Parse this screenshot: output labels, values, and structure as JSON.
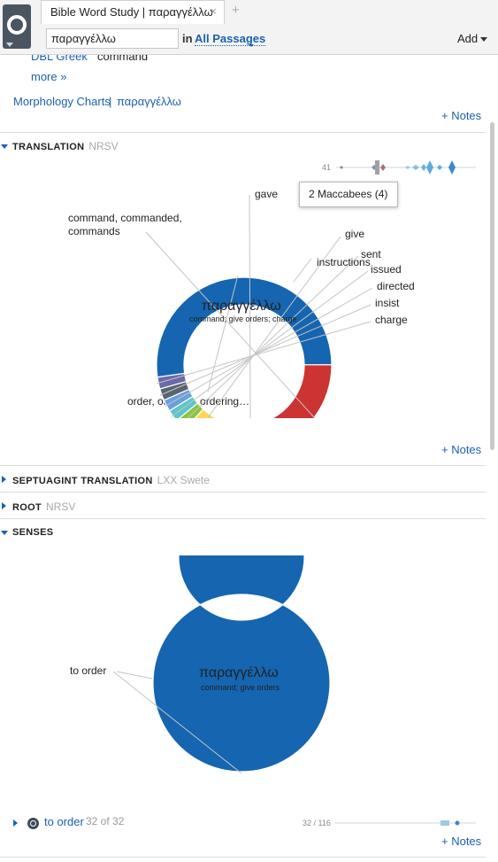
{
  "app": {
    "tab_title": "Bible Word Study | παραγγέλλω",
    "tab_close": "×",
    "tab_add": "+",
    "search_value": "παραγγέλλω",
    "in_label": "in",
    "passages_label": "All Passages",
    "add_label": "Add"
  },
  "top": {
    "dbl_greek": "DBL Greek",
    "dbl_greek_gloss": "command",
    "more": "more »",
    "morph_link": "Morphology Charts",
    "morph_sep": "|",
    "morph_word": "παραγγέλλω",
    "notes": "+ Notes"
  },
  "translation": {
    "title": "TRANSLATION",
    "subtitle": "NRSV",
    "dist_count": "41",
    "tooltip": "2 Maccabees (4)",
    "center_word": "παραγγέλλω",
    "center_gloss": "command; give orders; charge",
    "notes": "+ Notes"
  },
  "septuagint": {
    "title": "SEPTUAGINT TRANSLATION",
    "subtitle": "LXX Swete"
  },
  "root": {
    "title": "ROOT",
    "subtitle": "NRSV"
  },
  "senses": {
    "title": "SENSES",
    "center_word": "παραγγέλλω",
    "center_gloss": "command; give orders",
    "row_label": "to order",
    "row_count": "32 of 32",
    "row_ratio": "32 / 116",
    "notes": "+ Notes"
  },
  "chart_data": [
    {
      "type": "pie",
      "categories": [
        "order, ordered, ordering…",
        "command, commanded, commands",
        "gave",
        "instructions",
        "give",
        "sent",
        "issued",
        "directed",
        "insist",
        "charge"
      ],
      "values": [
        48,
        19,
        6,
        5,
        4,
        2,
        2,
        2,
        2,
        2
      ],
      "colors": [
        "#1565b0",
        "#cc3333",
        "#ff7a10",
        "#ff9a38",
        "#ffd659",
        "#8dc43f",
        "#5bc6cc",
        "#6aa0e0",
        "#5a6470",
        "#6a6aa8"
      ]
    },
    {
      "type": "pie",
      "categories": [
        "to order"
      ],
      "values": [
        100
      ],
      "colors": [
        "#1565b0"
      ]
    }
  ]
}
